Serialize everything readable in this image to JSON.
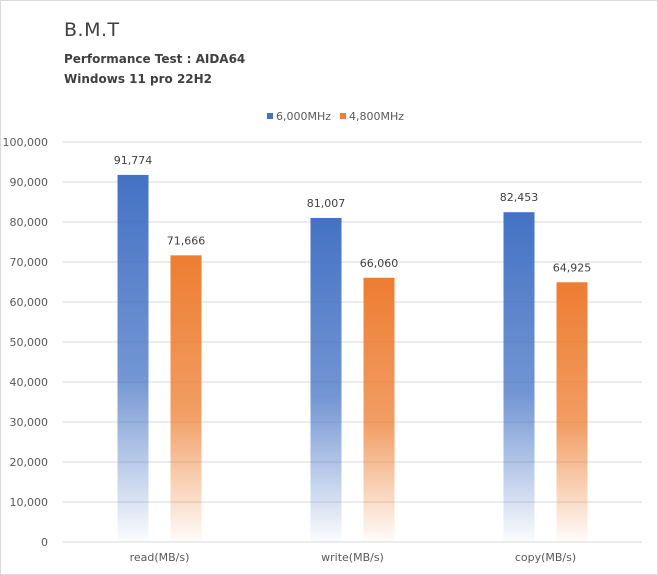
{
  "chart_data": {
    "type": "bar",
    "title": "B.M.T",
    "subtitle_lines": [
      "Performance Test : AIDA64",
      "Windows 11 pro 22H2"
    ],
    "categories": [
      "read(MB/s)",
      "write(MB/s)",
      "copy(MB/s)"
    ],
    "series": [
      {
        "name": "6,000MHz",
        "values": [
          91774,
          81007,
          82453
        ],
        "labels": [
          "91,774",
          "81,007",
          "82,453"
        ],
        "color": "#4472c4"
      },
      {
        "name": "4,800MHz",
        "values": [
          71666,
          66060,
          64925
        ],
        "labels": [
          "71,666",
          "66,060",
          "64,925"
        ],
        "color": "#ed7d31"
      }
    ],
    "ylim": [
      0,
      100000
    ],
    "yticks": [
      0,
      10000,
      20000,
      30000,
      40000,
      50000,
      60000,
      70000,
      80000,
      90000,
      100000
    ],
    "ytick_labels": [
      "0",
      "10,000",
      "20,000",
      "30,000",
      "40,000",
      "50,000",
      "60,000",
      "70,000",
      "80,000",
      "90,000",
      "100,000"
    ],
    "grid": true,
    "legend": "top-center",
    "bar_style": "gradient-fade-to-bottom"
  }
}
